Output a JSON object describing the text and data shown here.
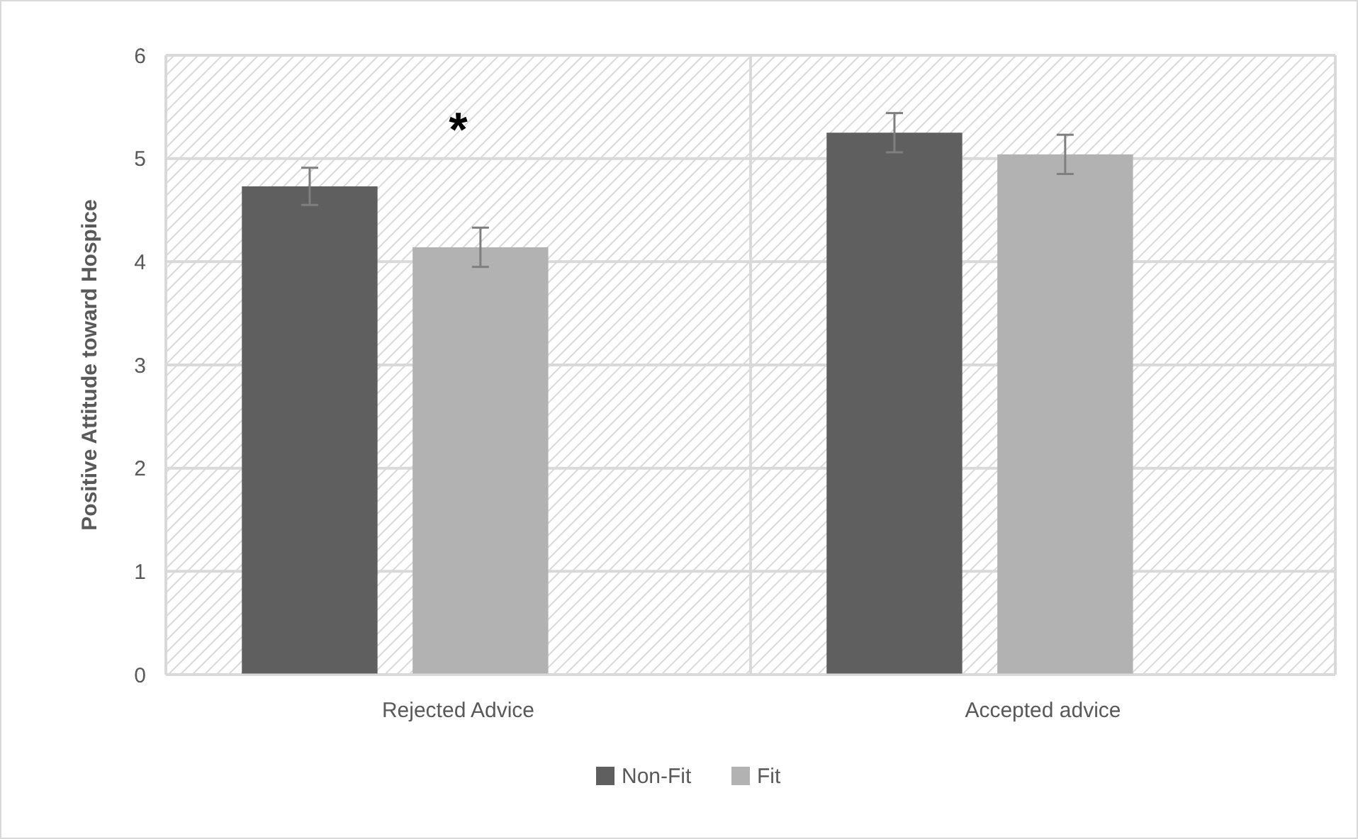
{
  "chart_data": {
    "type": "bar",
    "ylabel": "Positive Attitude toward Hospice",
    "categories": [
      "Rejected Advice",
      "Accepted advice"
    ],
    "series": [
      {
        "name": "Non-Fit",
        "color": "#5f5f5f",
        "values": [
          4.73,
          5.25
        ],
        "errors": [
          0.18,
          0.19
        ]
      },
      {
        "name": "Fit",
        "color": "#b2b2b2",
        "values": [
          4.14,
          5.04
        ],
        "errors": [
          0.19,
          0.19
        ]
      }
    ],
    "ylim": [
      0,
      6
    ],
    "yticks": [
      0,
      1,
      2,
      3,
      4,
      5,
      6
    ],
    "grid": true,
    "legend": "bottom",
    "annotations": [
      "*"
    ]
  }
}
